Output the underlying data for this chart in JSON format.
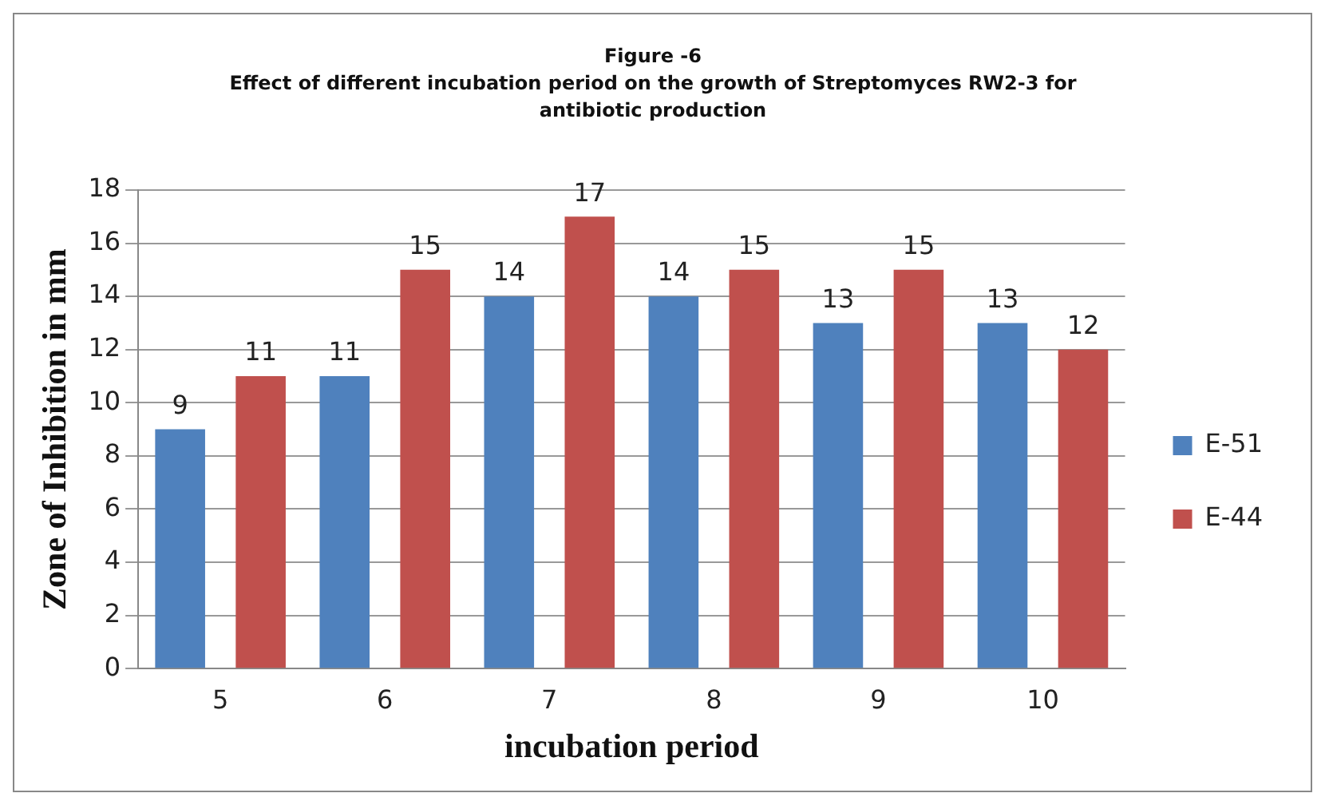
{
  "chart_data": {
    "type": "bar",
    "title": "Figure -6",
    "subtitle": "Effect of different incubation period on the growth of Streptomyces RW2-3 for antibiotic production",
    "xlabel": "incubation period",
    "ylabel": "Zone of Inhibition in mm",
    "categories": [
      "5",
      "6",
      "7",
      "8",
      "9",
      "10"
    ],
    "series": [
      {
        "name": "E-51",
        "color": "#4f81bd",
        "values": [
          9,
          11,
          14,
          14,
          13,
          13
        ]
      },
      {
        "name": "E-44",
        "color": "#c0504d",
        "values": [
          11,
          15,
          17,
          15,
          15,
          12
        ]
      }
    ],
    "ylim": [
      0,
      18
    ],
    "yticks": [
      0,
      2,
      4,
      6,
      8,
      10,
      12,
      14,
      16,
      18
    ],
    "grid": "y",
    "legend": "right",
    "data_labels": true
  }
}
